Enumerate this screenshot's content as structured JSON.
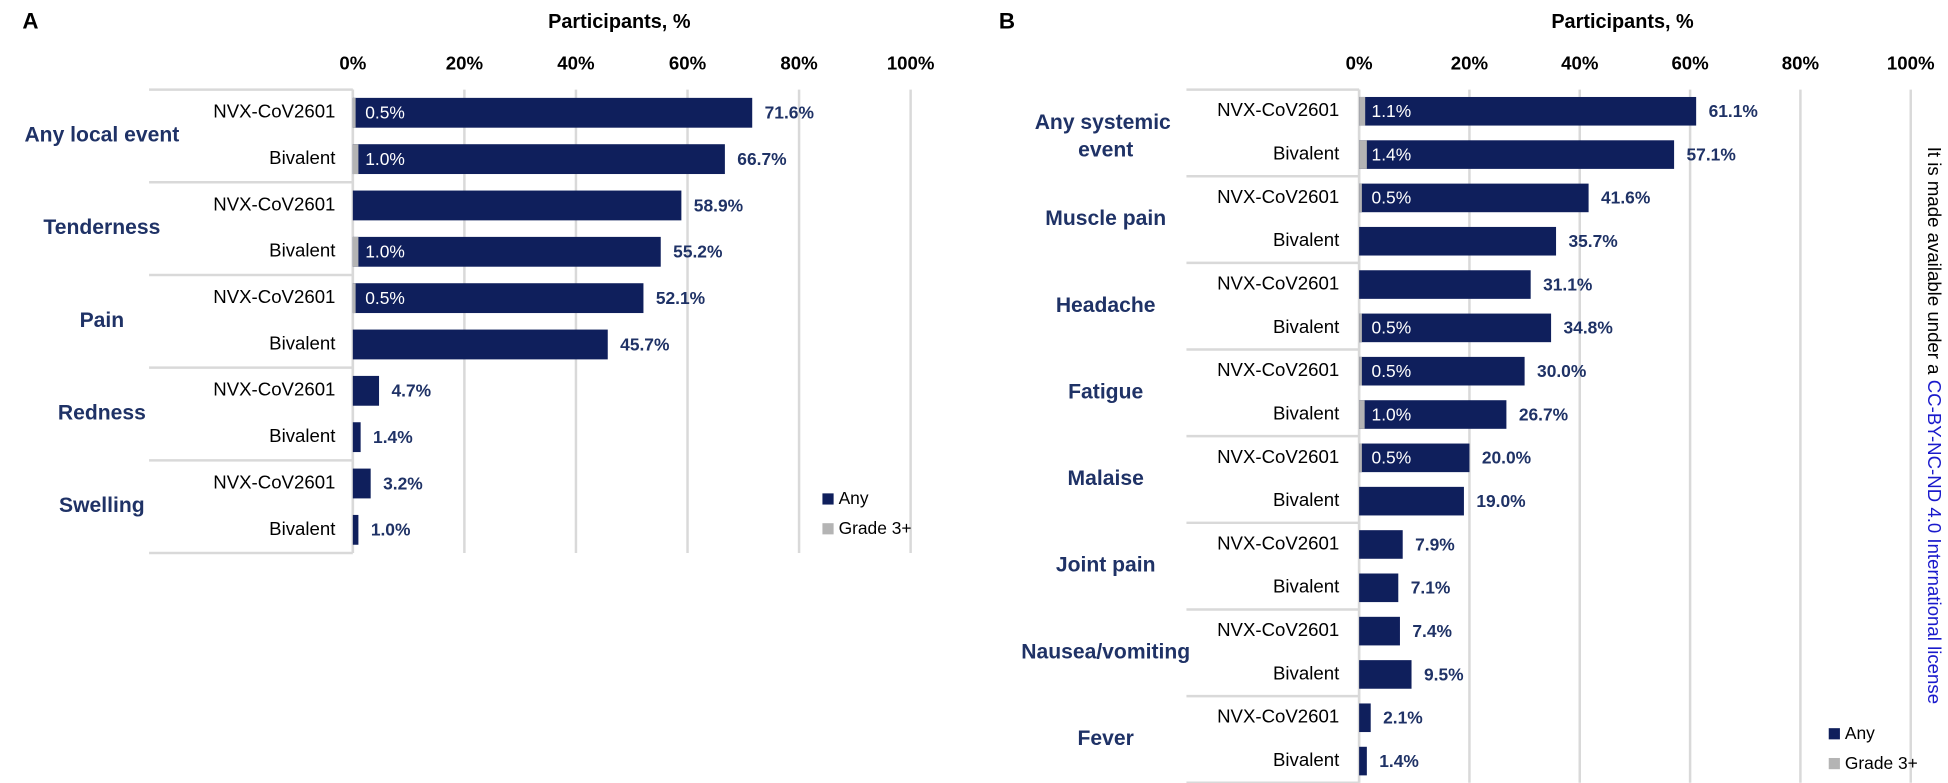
{
  "chart_data": [
    {
      "type": "bar",
      "panel": "A",
      "title": "Participants, %",
      "groups": [
        "Any local event",
        "Tenderness",
        "Pain",
        "Redness",
        "Swelling"
      ],
      "categories": [
        "NVX-CoV2601",
        "Bivalent",
        "NVX-CoV2601",
        "Bivalent",
        "NVX-CoV2601",
        "Bivalent",
        "NVX-CoV2601",
        "Bivalent",
        "NVX-CoV2601",
        "Bivalent"
      ],
      "series": [
        {
          "name": "Any",
          "color": "#0f1f5c",
          "values": [
            71.6,
            66.7,
            58.9,
            55.2,
            52.1,
            45.7,
            4.7,
            1.4,
            3.2,
            1.0
          ],
          "value_labels": [
            "71.6%",
            "66.7%",
            "58.9%",
            "55.2%",
            "52.1%",
            "45.7%",
            "4.7%",
            "1.4%",
            "3.2%",
            "1.0%"
          ]
        },
        {
          "name": "Grade 3+",
          "color": "#b4b4b4",
          "values": [
            0.5,
            1.0,
            null,
            1.0,
            0.5,
            null,
            null,
            null,
            null,
            null
          ],
          "value_labels": [
            "0.5%",
            "1.0%",
            null,
            "1.0%",
            "0.5%",
            null,
            null,
            null,
            null,
            null
          ]
        }
      ],
      "xlim": [
        0,
        100
      ],
      "xticks": [
        {
          "value": 0,
          "label": "0%"
        },
        {
          "value": 20,
          "label": "20%"
        },
        {
          "value": 40,
          "label": "40%"
        },
        {
          "value": 60,
          "label": "60%"
        },
        {
          "value": 80,
          "label": "80%"
        },
        {
          "value": 100,
          "label": "100%"
        }
      ],
      "grid": true,
      "legend": "lower right"
    },
    {
      "type": "bar",
      "panel": "B",
      "title": "Participants, %",
      "groups": [
        "Any systemic event",
        "Muscle pain",
        "Headache",
        "Fatigue",
        "Malaise",
        "Joint pain",
        "Nausea/vomiting",
        "Fever"
      ],
      "categories": [
        "NVX-CoV2601",
        "Bivalent",
        "NVX-CoV2601",
        "Bivalent",
        "NVX-CoV2601",
        "Bivalent",
        "NVX-CoV2601",
        "Bivalent",
        "NVX-CoV2601",
        "Bivalent",
        "NVX-CoV2601",
        "Bivalent",
        "NVX-CoV2601",
        "Bivalent",
        "NVX-CoV2601",
        "Bivalent"
      ],
      "series": [
        {
          "name": "Any",
          "color": "#0f1f5c",
          "values": [
            61.1,
            57.1,
            41.6,
            35.7,
            31.1,
            34.8,
            30.0,
            26.7,
            20.0,
            19.0,
            7.9,
            7.1,
            7.4,
            9.5,
            2.1,
            1.4
          ],
          "value_labels": [
            "61.1%",
            "57.1%",
            "41.6%",
            "35.7%",
            "31.1%",
            "34.8%",
            "30.0%",
            "26.7%",
            "20.0%",
            "19.0%",
            "7.9%",
            "7.1%",
            "7.4%",
            "9.5%",
            "2.1%",
            "1.4%"
          ]
        },
        {
          "name": "Grade 3+",
          "color": "#b4b4b4",
          "values": [
            1.1,
            1.4,
            0.5,
            null,
            null,
            0.5,
            0.5,
            1.0,
            0.5,
            null,
            null,
            null,
            null,
            null,
            null,
            null
          ],
          "value_labels": [
            "1.1%",
            "1.4%",
            "0.5%",
            null,
            null,
            "0.5%",
            "0.5%",
            "1.0%",
            "0.5%",
            null,
            null,
            null,
            null,
            null,
            null,
            null
          ]
        }
      ],
      "xlim": [
        0,
        100
      ],
      "xticks": [
        {
          "value": 0,
          "label": "0%"
        },
        {
          "value": 20,
          "label": "20%"
        },
        {
          "value": 40,
          "label": "40%"
        },
        {
          "value": 60,
          "label": "60%"
        },
        {
          "value": 80,
          "label": "80%"
        },
        {
          "value": 100,
          "label": "100%"
        }
      ],
      "grid": true,
      "legend": "lower right"
    }
  ],
  "side_note": {
    "text": "It is made available under a",
    "link": "CC-BY-NC-ND 4.0 International license"
  }
}
